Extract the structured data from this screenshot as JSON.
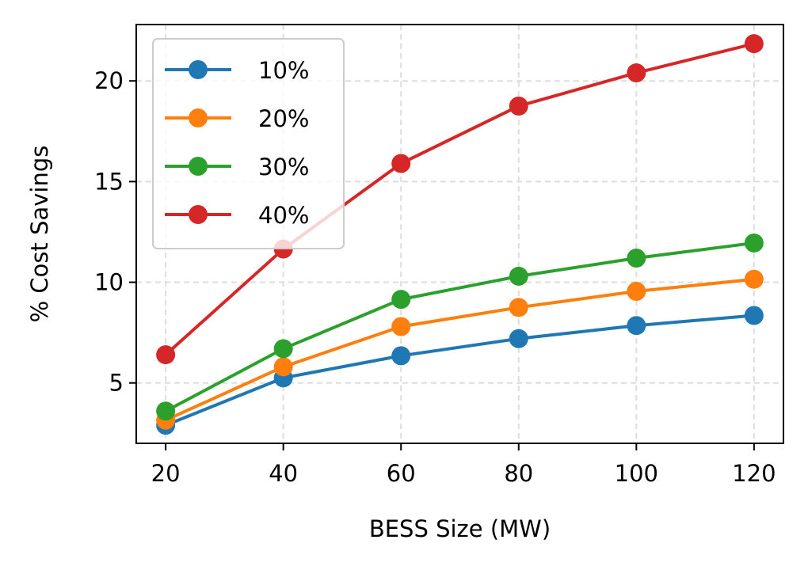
{
  "chart_data": {
    "type": "line",
    "title": "",
    "xlabel": "BESS Size (MW)",
    "ylabel": "% Cost Savings",
    "x": [
      20,
      40,
      60,
      80,
      100,
      120
    ],
    "x_ticks": [
      20,
      40,
      60,
      80,
      100,
      120
    ],
    "y_ticks": [
      5,
      10,
      15,
      20
    ],
    "xlim": [
      15,
      125
    ],
    "ylim": [
      2.0,
      22.8
    ],
    "grid": true,
    "legend_position": "upper-left",
    "series": [
      {
        "name": "10%",
        "color": "#1f77b4",
        "values": [
          2.9,
          5.25,
          6.35,
          7.2,
          7.85,
          8.35
        ]
      },
      {
        "name": "20%",
        "color": "#ff7f0e",
        "values": [
          3.15,
          5.8,
          7.8,
          8.75,
          9.55,
          10.15
        ]
      },
      {
        "name": "30%",
        "color": "#2ca02c",
        "values": [
          3.6,
          6.7,
          9.15,
          10.3,
          11.2,
          11.95
        ]
      },
      {
        "name": "40%",
        "color": "#d62728",
        "values": [
          6.4,
          11.65,
          15.9,
          18.75,
          20.4,
          21.85
        ]
      }
    ]
  }
}
